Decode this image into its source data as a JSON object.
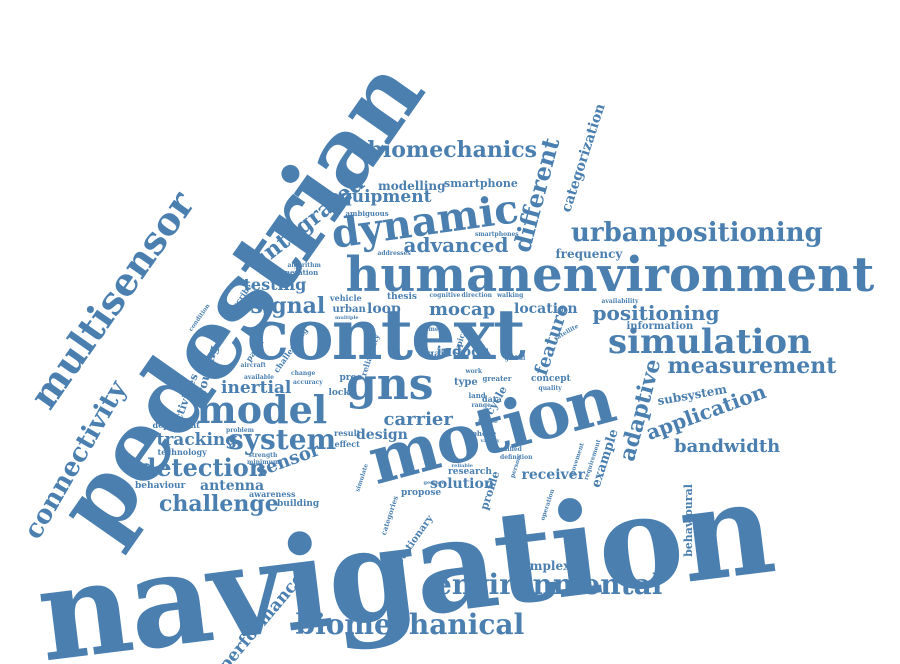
{
  "style": {
    "word_color": "#4a7fb0",
    "background": "#ffffff"
  },
  "words": [
    {
      "key": "navigation",
      "text": "navigation"
    },
    {
      "key": "pedestrian",
      "text": "pedestrian"
    },
    {
      "key": "context",
      "text": "context"
    },
    {
      "key": "motion",
      "text": "motion"
    },
    {
      "key": "humanenvironment",
      "text": "humanenvironment"
    },
    {
      "key": "multisensor",
      "text": "multisensor"
    },
    {
      "key": "dynamic",
      "text": "dynamic"
    },
    {
      "key": "model",
      "text": "model"
    },
    {
      "key": "gns",
      "text": "gns"
    },
    {
      "key": "environmental",
      "text": "environmental"
    },
    {
      "key": "biomechanical",
      "text": "biomechanical"
    },
    {
      "key": "connectivity",
      "text": "connectivity"
    },
    {
      "key": "simulation",
      "text": "simulation"
    },
    {
      "key": "urbanpositioning",
      "text": "urbanpositioning"
    },
    {
      "key": "biomechanics",
      "text": "biomechanics"
    },
    {
      "key": "system",
      "text": "system"
    },
    {
      "key": "detection",
      "text": "detection"
    },
    {
      "key": "integrated",
      "text": "integrated"
    },
    {
      "key": "different",
      "text": "different"
    },
    {
      "key": "measurement",
      "text": "measurement"
    },
    {
      "key": "adaptive",
      "text": "adaptive"
    },
    {
      "key": "application",
      "text": "application"
    },
    {
      "key": "challenge",
      "text": "challenge"
    },
    {
      "key": "advanced",
      "text": "advanced"
    },
    {
      "key": "positioning",
      "text": "positioning"
    },
    {
      "key": "signal",
      "text": "signal"
    },
    {
      "key": "tracking",
      "text": "tracking"
    },
    {
      "key": "bandwidth",
      "text": "bandwidth"
    },
    {
      "key": "feature",
      "text": "feature"
    },
    {
      "key": "equipment",
      "text": "equipment"
    },
    {
      "key": "performance",
      "text": "performance"
    },
    {
      "key": "mocap",
      "text": "mocap"
    },
    {
      "key": "carrier",
      "text": "carrier"
    },
    {
      "key": "sensor",
      "text": "sensor"
    },
    {
      "key": "inertial",
      "text": "inertial"
    },
    {
      "key": "testing",
      "text": "testing"
    },
    {
      "key": "antenna",
      "text": "antenna"
    },
    {
      "key": "indoor",
      "text": "indoor"
    },
    {
      "key": "solution",
      "text": "solution"
    },
    {
      "key": "receiver",
      "text": "receiver"
    },
    {
      "key": "design",
      "text": "design"
    },
    {
      "key": "loop",
      "text": "loop"
    },
    {
      "key": "location",
      "text": "location"
    },
    {
      "key": "modelling",
      "text": "modelling"
    },
    {
      "key": "smartphone",
      "text": "smartphone"
    },
    {
      "key": "categorization",
      "text": "categorization"
    },
    {
      "key": "frequency",
      "text": "frequency"
    },
    {
      "key": "complexity",
      "text": "complexity"
    },
    {
      "key": "information",
      "text": "information"
    },
    {
      "key": "subsystem",
      "text": "subsystem"
    },
    {
      "key": "routing",
      "text": "routing"
    },
    {
      "key": "example",
      "text": "example"
    },
    {
      "key": "profile",
      "text": "profile"
    },
    {
      "key": "behavioural",
      "text": "behavioural"
    },
    {
      "key": "activities",
      "text": "activities"
    },
    {
      "key": "stationary",
      "text": "stationary"
    },
    {
      "key": "behaviour",
      "text": "behaviour"
    },
    {
      "key": "building",
      "text": "building"
    },
    {
      "key": "awareness",
      "text": "awareness"
    },
    {
      "key": "technology",
      "text": "technology"
    },
    {
      "key": "dependent",
      "text": "dependent"
    },
    {
      "key": "propose",
      "text": "propose"
    },
    {
      "key": "concept",
      "text": "concept"
    },
    {
      "key": "cycle",
      "text": "cycle"
    },
    {
      "key": "research",
      "text": "research"
    },
    {
      "key": "thesis",
      "text": "thesis"
    },
    {
      "key": "urban",
      "text": "urban"
    },
    {
      "key": "vehicle",
      "text": "vehicle"
    },
    {
      "key": "proc",
      "text": "proc"
    },
    {
      "key": "lock",
      "text": "lock"
    },
    {
      "key": "gait",
      "text": "gait"
    },
    {
      "key": "type",
      "text": "type"
    },
    {
      "key": "land",
      "text": "land"
    },
    {
      "key": "data",
      "text": "data"
    },
    {
      "key": "phone",
      "text": "phone"
    },
    {
      "key": "result",
      "text": "result"
    },
    {
      "key": "effect",
      "text": "effect"
    },
    {
      "key": "paper",
      "text": "paper"
    },
    {
      "key": "challenging",
      "text": "challenging"
    },
    {
      "key": "accuracy",
      "text": "accuracy"
    },
    {
      "key": "available",
      "text": "available"
    },
    {
      "key": "aircraft",
      "text": "aircraft"
    },
    {
      "key": "describe",
      "text": "describe"
    },
    {
      "key": "generation",
      "text": "generation"
    },
    {
      "key": "algorithm",
      "text": "algorithm"
    },
    {
      "key": "ambiguous",
      "text": "ambiguous"
    },
    {
      "key": "smartphones",
      "text": "smartphones"
    },
    {
      "key": "addresses",
      "text": "addresses"
    },
    {
      "key": "cognitive",
      "text": "cognitive"
    },
    {
      "key": "direction",
      "text": "direction"
    },
    {
      "key": "walking",
      "text": "walking"
    },
    {
      "key": "availability",
      "text": "availability"
    },
    {
      "key": "reliability",
      "text": "reliability"
    },
    {
      "key": "greater",
      "text": "greater"
    },
    {
      "key": "quality",
      "text": "quality"
    },
    {
      "key": "categories",
      "text": "categories"
    },
    {
      "key": "simulate",
      "text": "simulate"
    },
    {
      "key": "movement",
      "text": "movement"
    },
    {
      "key": "requirement",
      "text": "requirement"
    },
    {
      "key": "operation",
      "text": "operation"
    },
    {
      "key": "unified",
      "text": "unified"
    },
    {
      "key": "definition",
      "text": "definition"
    },
    {
      "key": "minimum",
      "text": "minimum"
    },
    {
      "key": "strength",
      "text": "strength"
    },
    {
      "key": "problem",
      "text": "problem"
    },
    {
      "key": "change",
      "text": "change"
    },
    {
      "key": "condition",
      "text": "condition"
    },
    {
      "key": "work",
      "text": "work"
    },
    {
      "key": "range",
      "text": "range"
    },
    {
      "key": "phase",
      "text": "phase"
    },
    {
      "key": "variety",
      "text": "variety"
    },
    {
      "key": "satellite",
      "text": "satellite"
    },
    {
      "key": "reliable",
      "text": "reliable"
    },
    {
      "key": "person",
      "text": "person"
    },
    {
      "key": "gesture",
      "text": "gesture"
    },
    {
      "key": "global",
      "text": "global"
    },
    {
      "key": "typical",
      "text": "typical"
    },
    {
      "key": "multiple",
      "text": "multiple"
    },
    {
      "key": "mem",
      "text": "mem"
    }
  ]
}
